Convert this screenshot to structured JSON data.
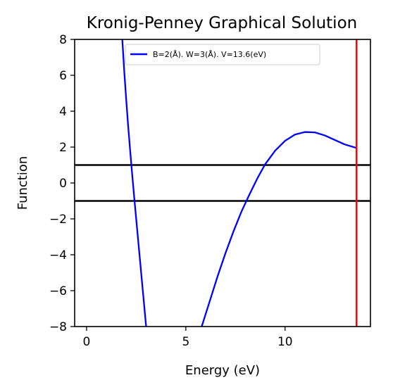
{
  "chart_data": {
    "type": "line",
    "title": "Kronig-Penney Graphical Solution",
    "xlabel": "Energy (eV)",
    "ylabel": "Function",
    "xlim": [
      -0.6,
      14.3
    ],
    "ylim": [
      -8,
      8
    ],
    "xticks": [
      0,
      5,
      10
    ],
    "xtick_labels": [
      "0",
      "5",
      "10"
    ],
    "yticks": [
      -8,
      -6,
      -4,
      -2,
      0,
      2,
      4,
      6,
      8
    ],
    "ytick_labels": [
      "−8",
      "−6",
      "−4",
      "−2",
      "0",
      "2",
      "4",
      "6",
      "8"
    ],
    "grid": false,
    "legend_position": "top-center",
    "series": [
      {
        "name": "B=2(Å). W=3(Å). V=13.6(eV)",
        "color": "#0000ff",
        "segments": [
          {
            "x": [
              1.8,
              1.9,
              2.0,
              2.1,
              2.2,
              2.3,
              2.4,
              2.5,
              2.6,
              2.7,
              2.8,
              2.9,
              3.0
            ],
            "y": [
              8.0,
              6.2,
              4.6,
              3.1,
              1.75,
              0.45,
              -0.8,
              -2.0,
              -3.2,
              -4.4,
              -5.6,
              -6.8,
              -8.0
            ]
          },
          {
            "x": [
              5.8,
              6.2,
              6.6,
              7.0,
              7.4,
              7.8,
              8.2,
              8.6,
              9.0,
              9.5,
              10.0,
              10.5,
              11.0,
              11.5,
              12.0,
              12.5,
              13.0,
              13.6
            ],
            "y": [
              -8.0,
              -6.6,
              -5.2,
              -3.9,
              -2.7,
              -1.6,
              -0.65,
              0.25,
              1.05,
              1.8,
              2.35,
              2.7,
              2.84,
              2.82,
              2.65,
              2.4,
              2.15,
              1.95
            ]
          }
        ]
      }
    ],
    "hlines": [
      {
        "y": 1,
        "color": "#000000"
      },
      {
        "y": -1,
        "color": "#000000"
      }
    ],
    "vlines": [
      {
        "x": 13.6,
        "color": "#ff0000"
      }
    ]
  }
}
